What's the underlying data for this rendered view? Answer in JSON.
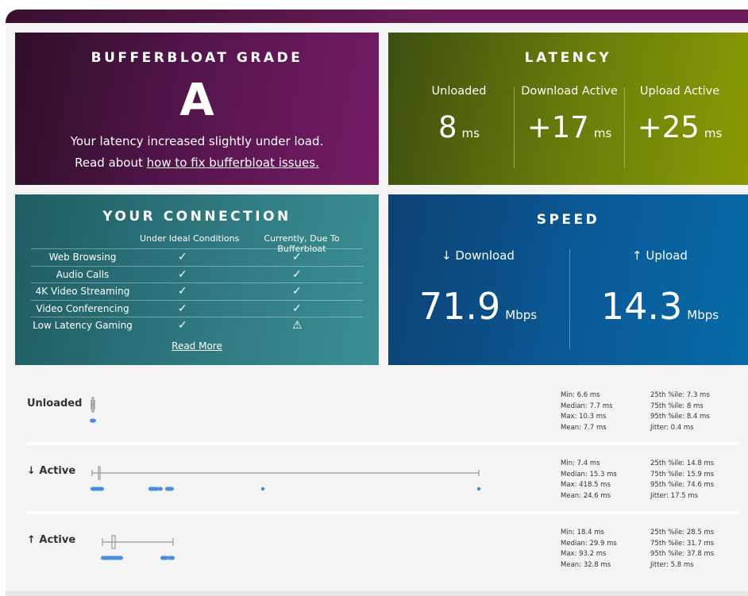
{
  "grade": {
    "title": "BUFFERBLOAT GRADE",
    "letter": "A",
    "line1": "Your latency increased slightly under load.",
    "line2_prefix": "Read about ",
    "link": "how to fix bufferbloat issues."
  },
  "latency": {
    "title": "LATENCY",
    "cols": [
      {
        "label": "Unloaded",
        "value": "8",
        "unit": "ms"
      },
      {
        "label": "Download Active",
        "value": "+17",
        "unit": "ms"
      },
      {
        "label": "Upload Active",
        "value": "+25",
        "unit": "ms"
      }
    ]
  },
  "connection": {
    "title": "YOUR CONNECTION",
    "col1": "Under Ideal Conditions",
    "col2": "Currently, Due To Bufferbloat",
    "rows": [
      {
        "name": "Web Browsing",
        "ideal": "✓",
        "current": "✓"
      },
      {
        "name": "Audio Calls",
        "ideal": "✓",
        "current": "✓"
      },
      {
        "name": "4K Video Streaming",
        "ideal": "✓",
        "current": "✓"
      },
      {
        "name": "Video Conferencing",
        "ideal": "✓",
        "current": "✓"
      },
      {
        "name": "Low Latency Gaming",
        "ideal": "✓",
        "current": "⚠"
      }
    ],
    "read_more": "Read More"
  },
  "speed": {
    "title": "SPEED",
    "download_label": "↓ Download",
    "download_value": "71.9",
    "upload_label": "↑ Upload",
    "upload_value": "14.3",
    "unit": "Mbps"
  },
  "sections": [
    {
      "label": "Unloaded",
      "stats_left": [
        "Min: 6.6 ms",
        "Median: 7.7 ms",
        "Max: 10.3 ms",
        "Mean: 7.7 ms"
      ],
      "stats_right": [
        "25th %ile: 7.3 ms",
        "75th %ile: 8 ms",
        "95th %ile: 8.4 ms",
        "Jitter: 0.4 ms"
      ]
    },
    {
      "label": "↓ Active",
      "stats_left": [
        "Min: 7.4 ms",
        "Median: 15.3 ms",
        "Max: 418.5 ms",
        "Mean: 24.6 ms"
      ],
      "stats_right": [
        "25th %ile: 14.8 ms",
        "75th %ile: 15.9 ms",
        "95th %ile: 74.6 ms",
        "Jitter: 17.5 ms"
      ]
    },
    {
      "label": "↑ Active",
      "stats_left": [
        "Min: 18.4 ms",
        "Median: 29.9 ms",
        "Max: 93.2 ms",
        "Mean: 32.8 ms"
      ],
      "stats_right": [
        "25th %ile: 28.5 ms",
        "75th %ile: 31.7 ms",
        "95th %ile: 37.8 ms",
        "Jitter: 5.8 ms"
      ]
    }
  ],
  "colors": {
    "dot": "#4a8fd8",
    "whisker": "#999999"
  }
}
